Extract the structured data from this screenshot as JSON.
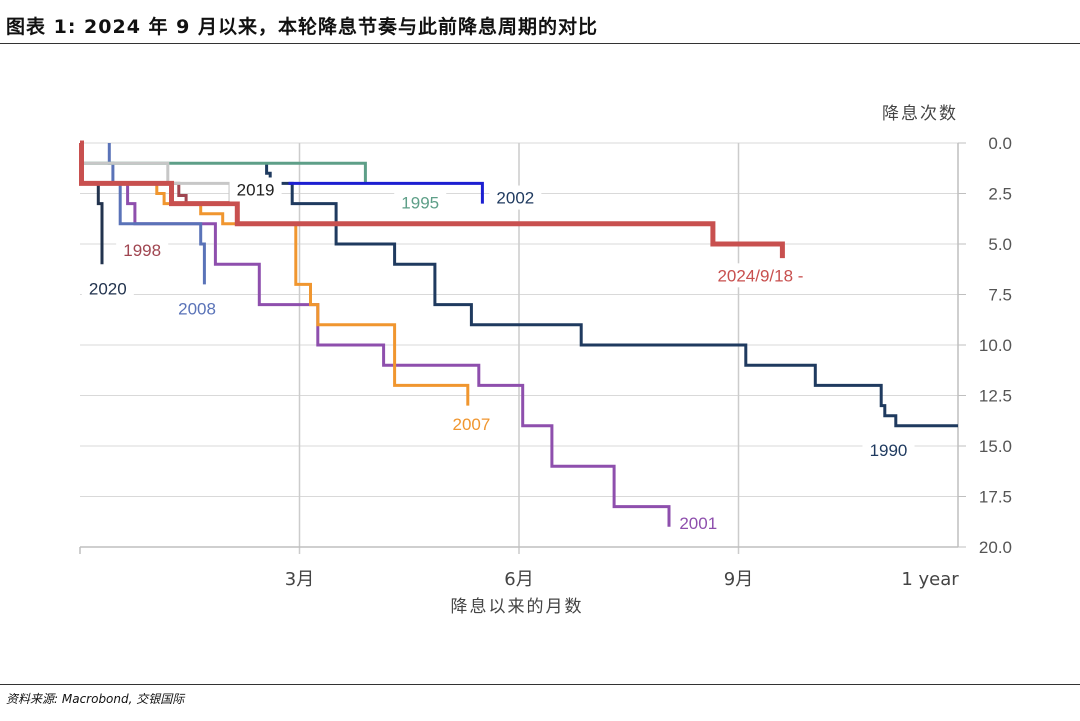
{
  "title": "图表 1: 2024 年 9 月以来，本轮降息节奏与此前降息周期的对比",
  "source": "资料来源: Macrobond, 交银国际",
  "chart_data": {
    "type": "line",
    "step": true,
    "ylabel": "降息次数",
    "xlabel": "降息以来的月数",
    "xlim": [
      0,
      12
    ],
    "ylim": [
      0,
      20
    ],
    "y_inverted": true,
    "y_axis_position": "right",
    "grid": true,
    "yticks": [
      0,
      2.5,
      5,
      7.5,
      10,
      12.5,
      15,
      17.5,
      20
    ],
    "ytick_labels": [
      "0.0",
      "2.5",
      "5.0",
      "7.5",
      "10.0",
      "12.5",
      "15.0",
      "17.5",
      "20.0"
    ],
    "xticks": [
      3,
      6,
      9,
      12
    ],
    "xtick_labels": [
      "3月",
      "6月",
      "9月",
      "1 year"
    ],
    "series": [
      {
        "name": "2024/9/18 -",
        "color": "#c8504f",
        "width": 5,
        "x": [
          0,
          0.02,
          0.02,
          1.25,
          1.25,
          2.15,
          2.15,
          8.65,
          8.65,
          9.6,
          9.6
        ],
        "y": [
          0,
          0,
          2,
          2,
          3,
          3,
          4,
          4,
          5,
          5,
          5.7
        ]
      },
      {
        "name": "1990",
        "color": "#1f3a5f",
        "width": 3,
        "x": [
          2.55,
          2.55,
          2.6,
          2.6,
          2.9,
          2.9,
          3.5,
          3.5,
          4.3,
          4.3,
          4.85,
          4.85,
          5.35,
          5.35,
          6.0,
          6.0,
          6.85,
          6.85,
          9.1,
          9.1,
          10.05,
          10.05,
          10.95,
          10.95,
          11.0,
          11.0,
          11.15,
          11.15,
          12.0
        ],
        "y": [
          1,
          1.5,
          1.5,
          2,
          2,
          3,
          3,
          5,
          5,
          6,
          6,
          8,
          8,
          9,
          9,
          9,
          9,
          10,
          10,
          11,
          11,
          12,
          12,
          13,
          13,
          13.5,
          13.5,
          14,
          14
        ]
      },
      {
        "name": "2001",
        "color": "#8e4fad",
        "width": 3,
        "x": [
          0.65,
          0.65,
          0.75,
          0.75,
          1.85,
          1.85,
          2.45,
          2.45,
          3.0,
          3.0,
          3.25,
          3.25,
          4.15,
          4.15,
          5.45,
          5.45,
          6.05,
          6.05,
          6.45,
          6.45,
          7.3,
          7.3,
          8.05,
          8.05
        ],
        "y": [
          2,
          3,
          3,
          4,
          4,
          6,
          6,
          8,
          8,
          8,
          8,
          10,
          10,
          11,
          11,
          12,
          12,
          14,
          14,
          16,
          16,
          18,
          18,
          19
        ]
      },
      {
        "name": "2007",
        "color": "#f0962f",
        "width": 3,
        "x": [
          1.05,
          1.05,
          1.15,
          1.15,
          1.65,
          1.65,
          1.95,
          1.95,
          2.25,
          2.25,
          2.95,
          2.95,
          3.15,
          3.15,
          3.25,
          3.25,
          4.3,
          4.3,
          5.3,
          5.3
        ],
        "y": [
          2,
          2.5,
          2.5,
          3,
          3,
          3.5,
          3.5,
          4,
          4,
          4,
          4,
          7,
          7,
          8,
          8,
          9,
          9,
          12,
          12,
          13
        ]
      },
      {
        "name": "2008",
        "color": "#5a73b8",
        "width": 3,
        "x": [
          0.4,
          0.4,
          0.45,
          0.45,
          0.55,
          0.55,
          1.65,
          1.65,
          1.7,
          1.7
        ],
        "y": [
          0,
          1,
          1,
          2,
          2,
          4,
          4,
          5,
          5,
          7
        ]
      },
      {
        "name": "2020",
        "color": "#22334e",
        "width": 3,
        "x": [
          0.25,
          0.25,
          0.3,
          0.3
        ],
        "y": [
          2,
          3,
          3,
          6
        ]
      },
      {
        "name": "1998",
        "color": "#a04651",
        "width": 3,
        "x": [
          0,
          1.35,
          1.35,
          1.45,
          1.45
        ],
        "y": [
          2,
          2,
          2.6,
          2.6,
          3
        ]
      },
      {
        "name": "1995",
        "color": "#5e9f88",
        "width": 3,
        "x": [
          0,
          3.9,
          3.9
        ],
        "y": [
          1,
          1,
          2
        ]
      },
      {
        "name": "2002",
        "color": "#1c1fd1",
        "width": 3,
        "x": [
          2.85,
          5.5,
          5.5
        ],
        "y": [
          2,
          2,
          3
        ]
      },
      {
        "name": "2019",
        "color": "#c7c7c7",
        "width": 3,
        "x": [
          0,
          1.2,
          1.2,
          2.05,
          2.05
        ],
        "y": [
          1,
          1,
          2,
          2,
          3
        ]
      }
    ],
    "annotations": [
      {
        "text": "2024/9/18 -",
        "x": 9.3,
        "y": 6.65,
        "color": "#c8504f",
        "box": true
      },
      {
        "text": "1990",
        "x": 11.05,
        "y": 15.3,
        "color": "#1f3a5f",
        "box": true
      },
      {
        "text": "2001",
        "x": 8.45,
        "y": 18.9,
        "color": "#8e4fad",
        "box": true
      },
      {
        "text": "2007",
        "x": 5.35,
        "y": 14.0,
        "color": "#f0962f",
        "box": true
      },
      {
        "text": "2008",
        "x": 1.6,
        "y": 8.3,
        "color": "#5a73b8",
        "box": true
      },
      {
        "text": "2020",
        "x": 0.38,
        "y": 7.3,
        "color": "#22334e",
        "box": true
      },
      {
        "text": "1998",
        "x": 0.85,
        "y": 5.4,
        "color": "#a04651",
        "box": true
      },
      {
        "text": "1995",
        "x": 4.65,
        "y": 3.05,
        "color": "#5e9f88",
        "box": true
      },
      {
        "text": "2002",
        "x": 5.95,
        "y": 2.8,
        "color": "#1f3a5f",
        "box": true
      },
      {
        "text": "2019",
        "x": 2.4,
        "y": 2.4,
        "color": "#1f1f1f",
        "box": true
      }
    ]
  }
}
